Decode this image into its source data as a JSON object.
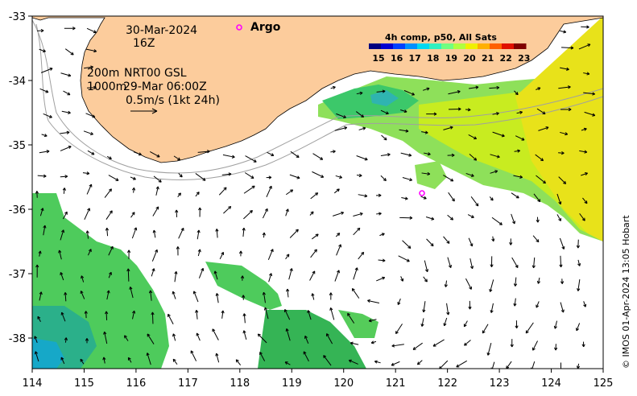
{
  "map": {
    "annotations": {
      "date": "30-Mar-2024",
      "hour": "16Z",
      "isobath_200": "200m",
      "product": "NRT00 GSL",
      "isobath_1000": "1000m",
      "product_time": "29-Mar 06:00Z",
      "vector_scale": "0.5m/s (1kt 24h)",
      "argo_label": "Argo"
    },
    "colorbar": {
      "title": "4h comp, p50, All Sats",
      "ticks": [
        "15",
        "16",
        "17",
        "18",
        "19",
        "20",
        "21",
        "22",
        "23"
      ],
      "colors": [
        "#00007f",
        "#0000d0",
        "#0040ff",
        "#0090ff",
        "#00d8f0",
        "#30f0c0",
        "#70ff80",
        "#b0ff40",
        "#f0f000",
        "#ffb000",
        "#ff6000",
        "#e01000",
        "#800000"
      ]
    },
    "x_ticks": [
      "114",
      "115",
      "116",
      "117",
      "118",
      "119",
      "120",
      "121",
      "122",
      "123",
      "124",
      "125"
    ],
    "y_ticks": [
      "-33",
      "-34",
      "-35",
      "-36",
      "-37",
      "-38"
    ],
    "copyright": "© IMOS 01-Apr-2024 13:05 Hobart",
    "colors": {
      "land": "#fccc9c",
      "argo": "#ff00ff",
      "isobath": "#a0a0a0"
    }
  }
}
